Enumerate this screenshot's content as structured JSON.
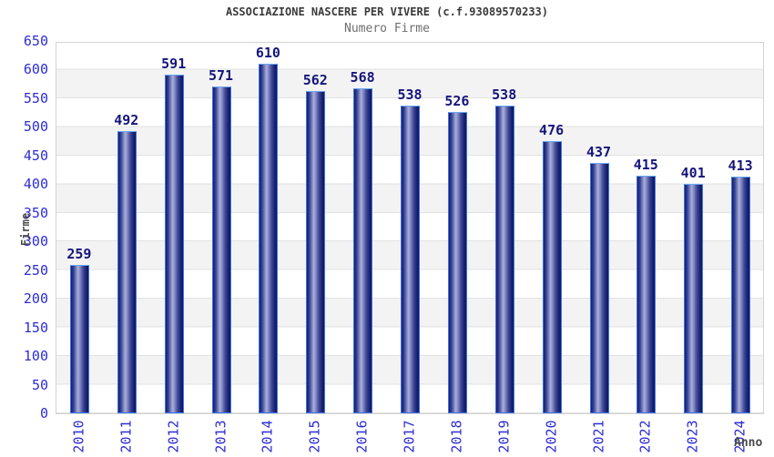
{
  "page": {
    "title": "ASSOCIAZIONE NASCERE PER VIVERE (c.f.93089570233)",
    "subtitle": "Numero Firme"
  },
  "chart_data": {
    "type": "bar",
    "title": "ASSOCIAZIONE NASCERE PER VIVERE (c.f.93089570233)",
    "subtitle": "Numero Firme",
    "categories": [
      "2010",
      "2011",
      "2012",
      "2013",
      "2014",
      "2015",
      "2016",
      "2017",
      "2018",
      "2019",
      "2020",
      "2021",
      "2022",
      "2023",
      "2024"
    ],
    "values": [
      259,
      492,
      591,
      571,
      610,
      562,
      568,
      538,
      526,
      538,
      476,
      437,
      415,
      401,
      413
    ],
    "xlabel": "Anno",
    "ylabel": "Firme",
    "ylim": [
      0,
      650
    ],
    "ytick_step": 50,
    "yticks": [
      0,
      50,
      100,
      150,
      200,
      250,
      300,
      350,
      400,
      450,
      500,
      550,
      600,
      650
    ],
    "grid": "horizontal gridlines with alternating white/gray bands every 50 units",
    "legend_position": "none",
    "bar_value_labels": true
  },
  "colors": {
    "tick_label": "#2d2dd6",
    "value_label": "#15157d",
    "bar_border": "#3b74ee",
    "bar_dark": "#141c66",
    "bar_highlight": "#aab0d8",
    "band_gray": "#f3f3f3",
    "grid_line": "#e2e2e2",
    "plot_border": "#d3d3d3",
    "axis_title": "#4a4a4a",
    "title": "#3a3a3a",
    "subtitle": "#6e6e6e"
  }
}
